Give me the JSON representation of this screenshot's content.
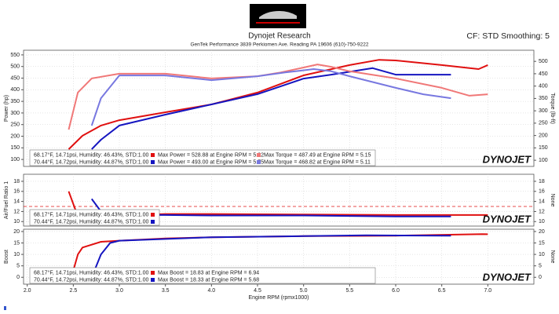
{
  "header": {
    "title": "Dynojet Research",
    "subtitle": "GenTek Performance 3839 Perkiomen Ave. Reading PA 19606 (610)-750-9222",
    "settings": "CF: STD Smoothing: 5"
  },
  "chart_data": [
    {
      "type": "line",
      "ylabel": "Power (hp)",
      "y2label": "Torque (lb-ft)",
      "brand": "DYNOJET",
      "grid": true,
      "xlim": [
        1.96,
        7.5
      ],
      "ylim": [
        70,
        570
      ],
      "yticks": [
        100,
        150,
        200,
        250,
        300,
        350,
        400,
        450,
        500,
        550
      ],
      "y2lim": [
        75,
        545
      ],
      "y2ticks": [
        100,
        150,
        200,
        250,
        300,
        350,
        400,
        450,
        500
      ],
      "series": [
        {
          "name": "Max Power = 528.88 at Engine RPM = 5.82",
          "color": "#e01010",
          "x": [
            2.45,
            2.6,
            2.8,
            3.0,
            3.5,
            4.0,
            4.5,
            5.0,
            5.5,
            5.82,
            6.0,
            6.5,
            6.9,
            7.0
          ],
          "values": [
            144,
            202,
            246,
            269,
            303,
            337,
            388,
            462,
            506,
            528.88,
            526,
            506,
            489,
            506
          ]
        },
        {
          "name": "Max Power = 493.00 at Engine RPM = 5.75",
          "color": "#1515c0",
          "x": [
            2.7,
            2.8,
            3.0,
            3.5,
            4.0,
            4.5,
            5.0,
            5.3,
            5.75,
            6.0,
            6.6
          ],
          "values": [
            144,
            185,
            246,
            293,
            337,
            381,
            448,
            465,
            493,
            465,
            465
          ]
        },
        {
          "name": "Max Torque = 487.49 at Engine RPM = 5.15",
          "color": "#f07878",
          "axis": "y2",
          "x": [
            2.45,
            2.55,
            2.7,
            3.0,
            3.5,
            4.0,
            4.5,
            4.75,
            5.0,
            5.15,
            5.3,
            5.5,
            6.0,
            6.5,
            6.8,
            7.0
          ],
          "values": [
            224,
            374,
            431,
            450,
            450,
            431,
            440,
            455,
            475,
            487.49,
            478,
            460,
            431,
            393,
            361,
            367
          ]
        },
        {
          "name": "Max Torque = 468.82 at Engine RPM = 5.11",
          "color": "#7878e0",
          "axis": "y2",
          "x": [
            2.7,
            2.8,
            3.0,
            3.5,
            4.0,
            4.5,
            4.8,
            5.11,
            5.3,
            5.5,
            6.0,
            6.3,
            6.6
          ],
          "values": [
            240,
            351,
            443,
            443,
            424,
            440,
            455,
            468.82,
            460,
            440,
            393,
            367,
            351
          ]
        }
      ],
      "legend": [
        {
          "conditions": "68.17°F, 14.71psi, Humidity: 46.43%, STD:1.00",
          "entries": [
            {
              "color": "#e01010",
              "series": 0
            },
            {
              "color": "#f07878",
              "series": 2
            }
          ]
        },
        {
          "conditions": "70.44°F, 14.72psi, Humidity: 44.87%, STD:1.00",
          "entries": [
            {
              "color": "#1515c0",
              "series": 1
            },
            {
              "color": "#7878e0",
              "series": 3
            }
          ]
        }
      ]
    },
    {
      "type": "line",
      "ylabel": "Air/Fuel Ratio 1",
      "y2label": "None",
      "brand": "DYNOJET",
      "grid": true,
      "xlim": [
        1.96,
        7.5
      ],
      "ylim": [
        9.1,
        19.4
      ],
      "yticks": [
        10,
        12,
        14,
        16,
        18
      ],
      "y2lim": [
        9.1,
        19.4
      ],
      "y2ticks": [
        10,
        12,
        14,
        16,
        18
      ],
      "reference_line": 13,
      "reference_color": "#e01010",
      "series": [
        {
          "color": "#e01010",
          "x": [
            2.45,
            2.55,
            2.6,
            2.8,
            3.0,
            3.5,
            4.0,
            5.0,
            6.0,
            7.0
          ],
          "values": [
            16,
            11,
            10.2,
            10.3,
            11.2,
            11.5,
            11.5,
            11.4,
            11.3,
            11.3
          ]
        },
        {
          "color": "#1515c0",
          "x": [
            2.7,
            2.8,
            2.9,
            3.0,
            3.5,
            4.0,
            5.0,
            6.0,
            6.6
          ],
          "values": [
            14.5,
            12,
            11.1,
            11.3,
            11.3,
            11.2,
            11.2,
            11,
            11
          ]
        }
      ],
      "legend": [
        {
          "conditions": "68.17°F, 14.71psi, Humidity: 46.43%, STD:1.00",
          "entries": [
            {
              "color": "#e01010"
            }
          ]
        },
        {
          "conditions": "70.44°F, 14.72psi, Humidity: 44.87%, STD:1.00",
          "entries": [
            {
              "color": "#1515c0"
            }
          ]
        }
      ]
    },
    {
      "type": "line",
      "ylabel": "Boost",
      "y2label": "None",
      "xlabel": "Engine RPM (rpmx1000)",
      "brand": "DYNOJET",
      "grid": true,
      "xlim": [
        1.96,
        7.5
      ],
      "xticks": [
        {
          "value": 2,
          "label": "2.0"
        },
        {
          "value": 2.5,
          "label": "2.5"
        },
        {
          "value": 3,
          "label": "3.0"
        },
        {
          "value": 3.5,
          "label": "3.5"
        },
        {
          "value": 4,
          "label": "4.0"
        },
        {
          "value": 4.5,
          "label": "4.5"
        },
        {
          "value": 5,
          "label": "5.0"
        },
        {
          "value": 5.5,
          "label": "5.5"
        },
        {
          "value": 6,
          "label": "6.0"
        },
        {
          "value": 6.5,
          "label": "6.5"
        },
        {
          "value": 7,
          "label": "7.0"
        }
      ],
      "ylim": [
        -3,
        21
      ],
      "yticks": [
        0,
        5,
        10,
        15,
        20
      ],
      "y2lim": [
        -3,
        21
      ],
      "y2ticks": [
        0,
        5,
        10,
        15,
        20
      ],
      "series": [
        {
          "name": "Max Boost = 18.83 at Engine RPM = 6.94",
          "color": "#e01010",
          "x": [
            2.45,
            2.5,
            2.55,
            2.6,
            2.8,
            3.0,
            3.5,
            4.0,
            5.0,
            6.0,
            6.94,
            7.0
          ],
          "values": [
            -1,
            3,
            10,
            13,
            15.5,
            16,
            17,
            17.5,
            18,
            18.2,
            18.83,
            18.8
          ]
        },
        {
          "name": "Max Boost = 18.33 at Engine RPM = 5.68",
          "color": "#1515c0",
          "x": [
            2.7,
            2.75,
            2.8,
            2.9,
            3.0,
            4.0,
            5.0,
            5.68,
            6.6
          ],
          "values": [
            0,
            5,
            10,
            15,
            16,
            17.5,
            18,
            18.33,
            18.2
          ]
        }
      ],
      "legend": [
        {
          "conditions": "68.17°F, 14.71psi, Humidity: 46.43%, STD:1.00",
          "entries": [
            {
              "color": "#e01010",
              "series": 0
            }
          ]
        },
        {
          "conditions": "70.44°F, 14.72psi, Humidity: 44.87%, STD:1.00",
          "entries": [
            {
              "color": "#1515c0",
              "series": 1
            }
          ]
        }
      ]
    }
  ]
}
